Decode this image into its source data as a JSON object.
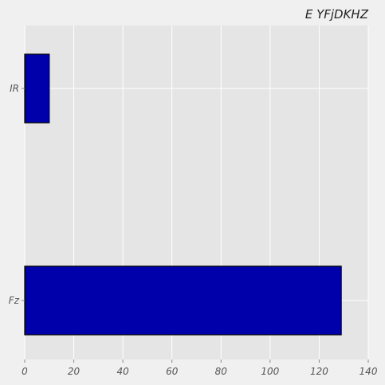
{
  "chart_data": {
    "type": "bar",
    "orientation": "horizontal",
    "title": "E YFjDKHZ",
    "xlabel": "",
    "ylabel": "",
    "categories": [
      "IR",
      "Fz"
    ],
    "values": [
      10,
      129
    ],
    "xlim": [
      0,
      140
    ],
    "xticks": [
      0,
      20,
      40,
      60,
      80,
      100,
      120,
      140
    ],
    "grid": true,
    "legend": "none",
    "colors": {
      "bar_fill": "#0000aa",
      "bar_edge": "#000000",
      "plot_bg": "#e5e5e5",
      "page_bg": "#f0f0f0",
      "grid": "#ffffff"
    }
  }
}
